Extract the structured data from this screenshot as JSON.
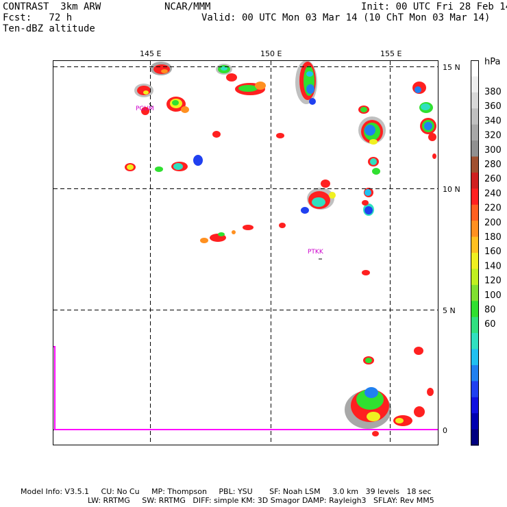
{
  "header": {
    "model": "CONTRAST  3km ARW",
    "forecast": "Fcst:   72 h",
    "field": "Ten-dBZ altitude",
    "center": "NCAR/MMM",
    "init": "Init: 00 UTC Fri 28 Feb 14",
    "valid": "Valid: 00 UTC Mon 03 Mar 14 (10 ChT Mon 03 Mar 14)"
  },
  "map": {
    "lon_labels": [
      "145 E",
      "150 E",
      "155 E"
    ],
    "lat_labels": [
      "15 N",
      "10 N",
      "5 N",
      "0"
    ],
    "stations": [
      "PGUM",
      "PTKK"
    ],
    "colors": {
      "frame": "#000000",
      "grid": "#000000",
      "boundary": "#ff00ff",
      "station": "#cc00cc"
    }
  },
  "colorbar": {
    "unit": "hPa",
    "labels": [
      "380",
      "360",
      "340",
      "320",
      "300",
      "280",
      "260",
      "240",
      "220",
      "200",
      "180",
      "160",
      "140",
      "120",
      "100",
      "80",
      "60"
    ],
    "colors": [
      "#ffffff",
      "#eeeeee",
      "#d8d8d8",
      "#c0c0c0",
      "#a8a8a8",
      "#909090",
      "#a05030",
      "#d02020",
      "#ff2020",
      "#ff6020",
      "#ff9020",
      "#ffc020",
      "#f0f020",
      "#c0f020",
      "#80e030",
      "#30e030",
      "#30e080",
      "#30e0c0",
      "#20c0f0",
      "#2080f0",
      "#2040f0",
      "#1010e0",
      "#0000b0",
      "#000080"
    ]
  },
  "footer": {
    "line1": "Model Info: V3.5.1     CU: No Cu     MP: Thompson     PBL: YSU       SF: Noah LSM     3.0 km   39 levels   18 sec",
    "line2": "LW: RRTMG     SW: RRTMG   DIFF: simple KM: 3D Smagor DAMP: Rayleigh3   SFLAY: Rev MM5"
  }
}
